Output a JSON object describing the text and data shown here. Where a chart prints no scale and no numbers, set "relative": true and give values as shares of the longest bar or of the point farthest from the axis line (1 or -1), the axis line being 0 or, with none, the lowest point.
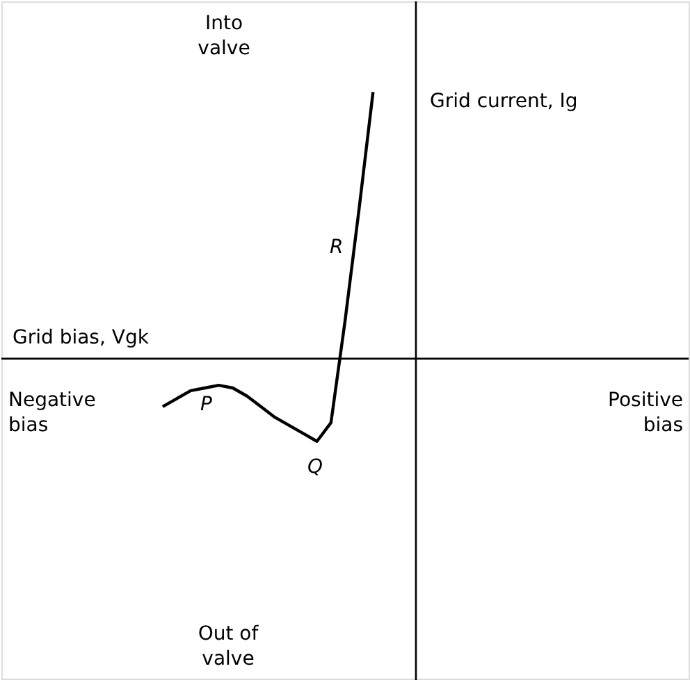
{
  "chart_data": {
    "type": "line",
    "relative": true,
    "marker": "none",
    "line_style": "solid",
    "categories": [
      null,
      null,
      null,
      null,
      null,
      null,
      null,
      null,
      null,
      null,
      null,
      null,
      null,
      null,
      null,
      null,
      null,
      null,
      null,
      null,
      null,
      null,
      null,
      null,
      null,
      null,
      null,
      null,
      null,
      null,
      null,
      null,
      null,
      null,
      null,
      null,
      null,
      null,
      null,
      null,
      null,
      null,
      null,
      null,
      null,
      null,
      null,
      null,
      null
    ],
    "series": [
      {
        "color": "#000000",
        "values": [
          null,
          null,
          null,
          null,
          null,
          null,
          null,
          null,
          null,
          null,
          null,
          -0.18,
          -0.15,
          -0.12,
          -0.11,
          -0.1,
          -0.11,
          -0.14,
          -0.18,
          -0.22,
          -0.25,
          -0.28,
          -0.31,
          -0.24,
          0.14,
          0.56,
          1.0,
          null,
          null,
          null,
          null,
          null,
          null,
          null,
          null,
          null,
          null,
          null,
          null,
          null,
          null,
          null,
          null,
          null,
          null,
          null,
          null,
          null,
          null
        ]
      }
    ],
    "ref_lines": [
      {
        "axis": "y",
        "value": 0,
        "color": "#000000"
      }
    ],
    "annotations": [
      "Into valve",
      "Out of valve",
      "Grid current, Ig",
      "Grid bias, Vgk",
      "Negative bias",
      "Positive bias",
      "P",
      "Q",
      "R"
    ]
  }
}
